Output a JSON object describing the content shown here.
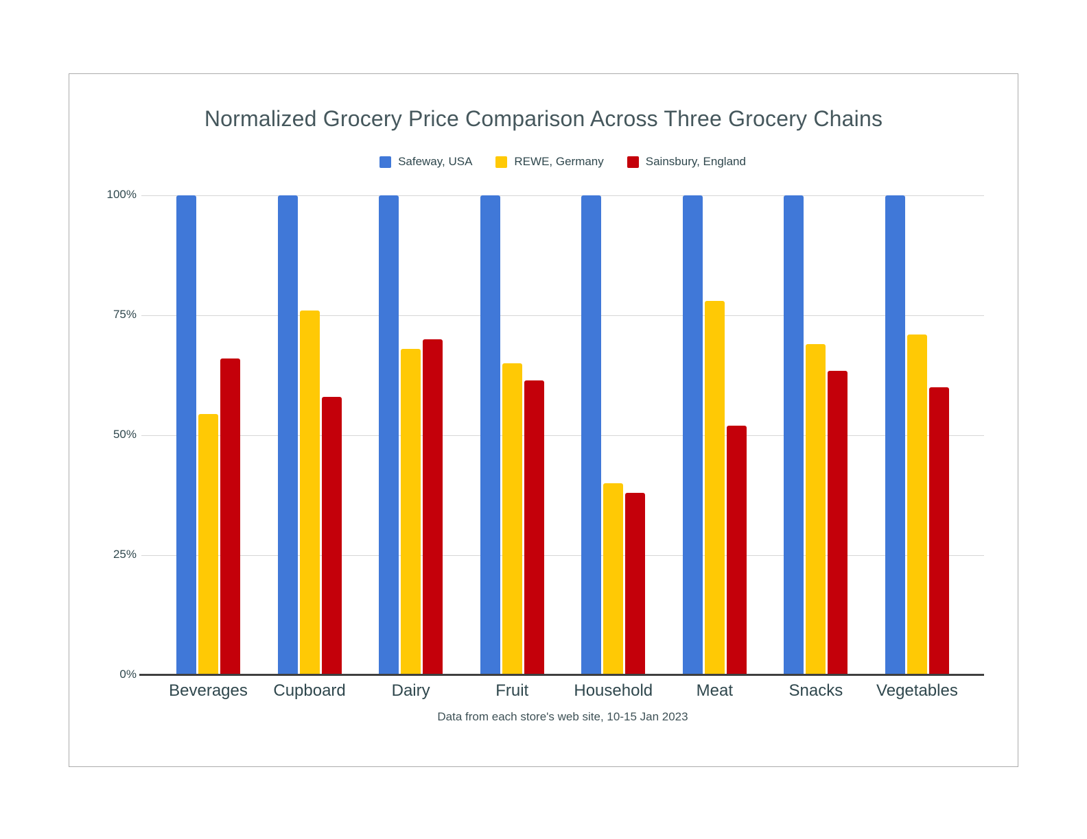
{
  "window": {
    "background": "#FFFFFF"
  },
  "card": {
    "background": "#FFFFFF",
    "border_color": "#ABABAB"
  },
  "chart_data": {
    "type": "bar",
    "title": "Normalized Grocery Price Comparison Across Three Grocery Chains",
    "subtitle": "Data from each store's web site, 10-15 Jan 2023",
    "categories": [
      "Beverages",
      "Cupboard",
      "Dairy",
      "Fruit",
      "Household",
      "Meat",
      "Snacks",
      "Vegetables"
    ],
    "series": [
      {
        "name": "Safeway, USA",
        "color": "#4078D8",
        "values": [
          100,
          100,
          100,
          100,
          100,
          100,
          100,
          100
        ]
      },
      {
        "name": "REWE, Germany",
        "color": "#FFC905",
        "values": [
          54.5,
          76,
          68,
          65,
          40,
          78,
          69,
          71
        ]
      },
      {
        "name": "Sainsbury, England",
        "color": "#C4000A",
        "values": [
          66,
          58,
          70,
          61.5,
          38,
          52,
          63.5,
          60
        ]
      }
    ],
    "unit": "%",
    "xlabel": "",
    "ylabel": "",
    "ylim": [
      0,
      100
    ],
    "yticks": [
      "0%",
      "25%",
      "50%",
      "75%",
      "100%"
    ],
    "grid": true,
    "legend_position": "top"
  },
  "style": {
    "title_color": "#45575C",
    "label_color": "#2F474D",
    "subtitle_color": "#3E5156",
    "grid_color": "#D6D6D6",
    "axis_color": "#3F3F3F"
  }
}
